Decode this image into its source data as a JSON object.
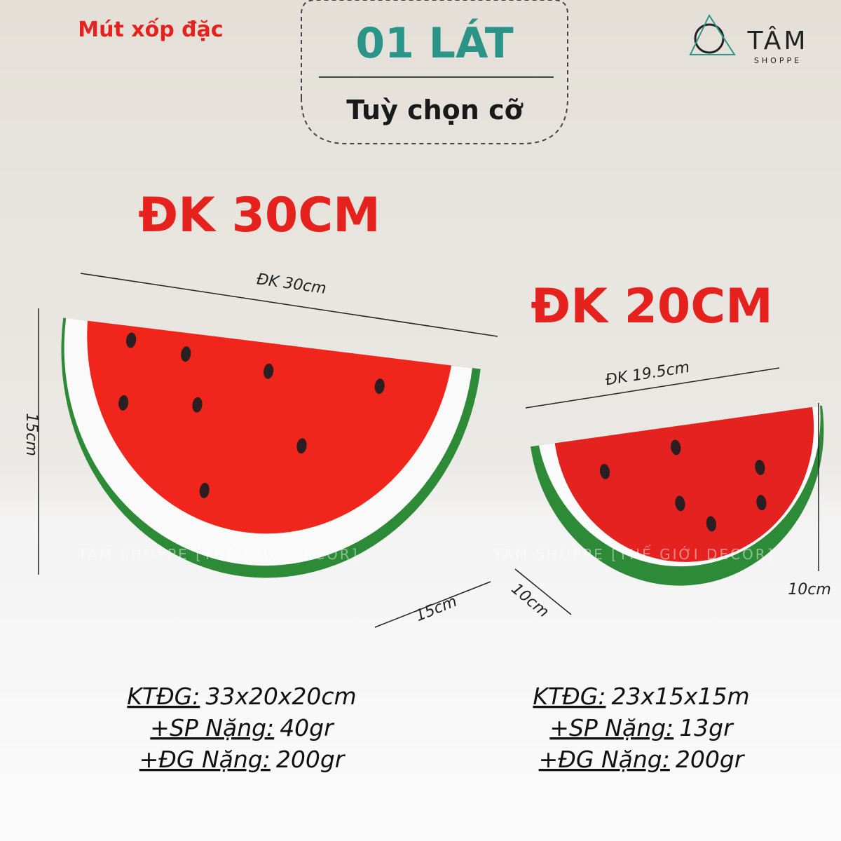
{
  "header": {
    "material": "Mút xốp đặc",
    "title": "01 LÁT",
    "subtitle": "Tuỳ chọn cỡ"
  },
  "logo": {
    "name": "TÂM",
    "sub": "SHOPPE"
  },
  "watermark": "TÂM SHOPPE [THẾ GIỚI DECOR]",
  "products": [
    {
      "size_label": "ĐK 30CM",
      "diameter": "ĐK 30cm",
      "height": "15cm",
      "depth": "15cm",
      "specs": [
        {
          "label": "KTĐG:",
          "value": "33x20x20cm"
        },
        {
          "label": "+SP Nặng:",
          "value": "40gr"
        },
        {
          "label": "+ĐG Nặng:",
          "value": "200gr"
        }
      ]
    },
    {
      "size_label": "ĐK 20CM",
      "diameter": "ĐK 19.5cm",
      "height": "10cm",
      "depth": "10cm",
      "specs": [
        {
          "label": "KTĐG:",
          "value": "23x15x15m"
        },
        {
          "label": "+SP Nặng:",
          "value": "13gr"
        },
        {
          "label": "+ĐG Nặng:",
          "value": "200gr"
        }
      ]
    }
  ]
}
